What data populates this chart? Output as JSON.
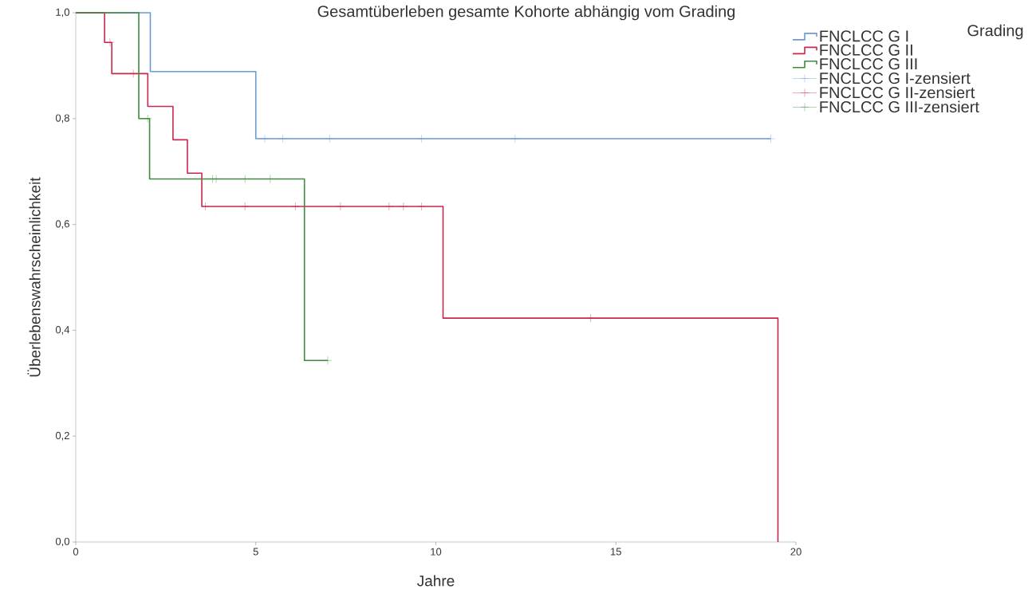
{
  "chart_data": {
    "type": "step",
    "title": "Gesamtüberleben gesamte Kohorte abhängig vom Grading",
    "xlabel": "Jahre",
    "ylabel": "Überlebenswahrscheinlichkeit",
    "legend_title": "Grading",
    "legend": "right",
    "grid": false,
    "xlim": [
      0,
      20
    ],
    "ylim": [
      0,
      1
    ],
    "xticks": [
      0,
      5,
      10,
      15,
      20
    ],
    "yticks": [
      {
        "value": 0,
        "label": "0,0"
      },
      {
        "value": 0.2,
        "label": "0,2"
      },
      {
        "value": 0.4,
        "label": "0,4"
      },
      {
        "value": 0.6,
        "label": "0,6"
      },
      {
        "value": 0.8,
        "label": "0,8"
      },
      {
        "value": 1,
        "label": "1,0"
      }
    ],
    "series": [
      {
        "name": "FNCLCC G I",
        "color": "#6a9ad6",
        "marker": "none",
        "x": [
          0,
          2.07,
          5.0,
          19.3
        ],
        "values": [
          1,
          0.889,
          0.762,
          0.762
        ]
      },
      {
        "name": "FNCLCC G II",
        "color": "#c8284c",
        "marker": "none",
        "x": [
          0,
          0.8,
          1.0,
          2.0,
          2.7,
          3.1,
          3.5,
          10.2,
          19.5
        ],
        "values": [
          1,
          0.944,
          0.885,
          0.823,
          0.76,
          0.697,
          0.634,
          0.423,
          0
        ]
      },
      {
        "name": "FNCLCC G III",
        "color": "#3f8a3f",
        "marker": "none",
        "x": [
          0,
          1.75,
          2.05,
          6.35,
          7.0
        ],
        "values": [
          1,
          0.8,
          0.686,
          0.343,
          0.343
        ]
      },
      {
        "name": "FNCLCC G I-zensiert",
        "type": "scatter",
        "color": "#6a9ad6",
        "marker": "cross",
        "x": [
          5.25,
          5.75,
          7.05,
          9.6,
          12.2,
          19.3
        ],
        "values": [
          0.762,
          0.762,
          0.762,
          0.762,
          0.762,
          0.762
        ]
      },
      {
        "name": "FNCLCC G II-zensiert",
        "type": "scatter",
        "color": "#c8284c",
        "marker": "cross",
        "x": [
          0.95,
          1.6,
          3.6,
          4.7,
          6.1,
          7.35,
          8.7,
          9.1,
          9.6,
          14.3
        ],
        "values": [
          0.944,
          0.885,
          0.634,
          0.634,
          0.634,
          0.634,
          0.634,
          0.634,
          0.634,
          0.423
        ]
      },
      {
        "name": "FNCLCC G III-zensiert",
        "type": "scatter",
        "color": "#3f8a3f",
        "marker": "cross",
        "x": [
          2.0,
          3.8,
          3.9,
          4.7,
          5.4,
          7.0
        ],
        "values": [
          0.8,
          0.686,
          0.686,
          0.686,
          0.686,
          0.343
        ]
      }
    ]
  }
}
